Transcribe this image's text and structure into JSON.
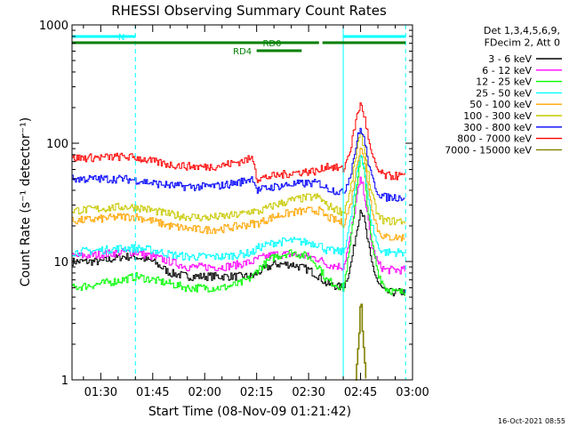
{
  "chart_data": {
    "type": "line",
    "title": "RHESSI Observing Summary Count Rates",
    "xlabel": "Start Time (08-Nov-09 01:21:42)",
    "ylabel": "Count Rate (s⁻¹ detector⁻¹)",
    "x_scale": "time",
    "y_scale": "log",
    "xlim": [
      "01:21:42",
      "03:00"
    ],
    "ylim": [
      1,
      1000
    ],
    "x_ticks": [
      "01:30",
      "01:45",
      "02:00",
      "02:15",
      "02:30",
      "02:45",
      "03:00"
    ],
    "y_ticks": [
      "1",
      "10",
      "100",
      "1000"
    ],
    "legend_position": "top-right",
    "legend_header": [
      "Det 1,3,4,5,6,9,",
      "FDecim 2, Att 0"
    ],
    "footer_timestamp": "16-Oct-2021 08:55",
    "annotations": {
      "night": {
        "label": "N",
        "color": "#00ffff",
        "intervals": [
          [
            "01:21:42",
            "01:40"
          ],
          [
            "02:40",
            "02:58"
          ]
        ]
      },
      "rd0": {
        "label": "RD0",
        "color": "#008000",
        "intervals": [
          [
            "01:21:42",
            "02:33"
          ],
          [
            "02:34",
            "02:58"
          ]
        ]
      },
      "rd4": {
        "label": "RD4",
        "color": "#008000",
        "intervals": [
          [
            "02:15",
            "02:28"
          ]
        ]
      },
      "vertical_lines": [
        {
          "t": "01:40",
          "style": "dashed",
          "color": "#00ffff"
        },
        {
          "t": "02:40",
          "style": "solid",
          "color": "#00ffff"
        },
        {
          "t": "02:58",
          "style": "dashed",
          "color": "#00ffff"
        }
      ]
    },
    "series": [
      {
        "name": "3 - 6 keV",
        "color": "#000000",
        "x": [
          "01:21:42",
          "01:30",
          "01:36",
          "01:40",
          "01:45",
          "01:50",
          "01:55",
          "02:00",
          "02:05",
          "02:10",
          "02:14",
          "02:15",
          "02:20",
          "02:25",
          "02:30",
          "02:33",
          "02:35",
          "02:40",
          "02:42",
          "02:44",
          "02:45",
          "02:46",
          "02:48",
          "02:50",
          "02:52",
          "02:55",
          "02:58"
        ],
        "values": [
          10,
          10,
          11,
          11,
          10,
          8,
          7.5,
          7.5,
          7.5,
          7.5,
          7.5,
          8,
          9.5,
          9.5,
          8.5,
          7.5,
          6.5,
          6,
          9,
          20,
          29,
          22,
          10,
          6.5,
          5.5,
          5.5,
          5.5
        ]
      },
      {
        "name": "6 - 12 keV",
        "color": "#ff00ff",
        "x": [
          "01:21:42",
          "01:30",
          "01:36",
          "01:40",
          "01:45",
          "01:50",
          "01:55",
          "02:00",
          "02:05",
          "02:10",
          "02:14",
          "02:15",
          "02:20",
          "02:25",
          "02:30",
          "02:33",
          "02:35",
          "02:40",
          "02:42",
          "02:44",
          "02:45",
          "02:46",
          "02:48",
          "02:50",
          "02:52",
          "02:55",
          "02:58"
        ],
        "values": [
          11,
          11.5,
          12,
          12,
          11,
          10,
          9,
          9,
          9,
          9.5,
          10,
          10.5,
          11.5,
          11.5,
          11,
          10.5,
          9.5,
          9,
          16,
          38,
          50,
          38,
          14,
          9.5,
          8.5,
          8.5,
          8.5
        ]
      },
      {
        "name": "12 - 25 keV",
        "color": "#00ff00",
        "x": [
          "01:21:42",
          "01:30",
          "01:36",
          "01:40",
          "01:45",
          "01:50",
          "01:55",
          "02:00",
          "02:05",
          "02:10",
          "02:14",
          "02:15",
          "02:20",
          "02:25",
          "02:30",
          "02:33",
          "02:35",
          "02:40",
          "02:42",
          "02:44",
          "02:45",
          "02:46",
          "02:48",
          "02:50",
          "02:52",
          "02:55",
          "02:58"
        ],
        "values": [
          6,
          6.5,
          7,
          7.5,
          7,
          6.5,
          6,
          6,
          6,
          6.5,
          7.5,
          8.5,
          11,
          12,
          11,
          9,
          7,
          6,
          14,
          50,
          80,
          55,
          15,
          8,
          6,
          5.5,
          5.5
        ]
      },
      {
        "name": "25 - 50 keV",
        "color": "#00ffff",
        "x": [
          "01:21:42",
          "01:30",
          "01:36",
          "01:40",
          "01:45",
          "01:50",
          "01:55",
          "02:00",
          "02:05",
          "02:10",
          "02:14",
          "02:15",
          "02:20",
          "02:25",
          "02:30",
          "02:33",
          "02:35",
          "02:40",
          "02:42",
          "02:44",
          "02:45",
          "02:46",
          "02:48",
          "02:50",
          "02:52",
          "02:55",
          "02:58"
        ],
        "values": [
          12,
          12.5,
          13,
          13,
          12.5,
          11.5,
          11,
          11,
          11,
          11.5,
          12,
          13,
          14.5,
          15,
          14.5,
          14,
          12.5,
          12,
          22,
          60,
          85,
          60,
          22,
          13,
          12,
          12,
          12
        ]
      },
      {
        "name": "50 - 100 keV",
        "color": "#ffa500",
        "x": [
          "01:21:42",
          "01:30",
          "01:36",
          "01:40",
          "01:45",
          "01:50",
          "01:55",
          "02:00",
          "02:05",
          "02:10",
          "02:14",
          "02:15",
          "02:20",
          "02:25",
          "02:30",
          "02:33",
          "02:35",
          "02:40",
          "02:42",
          "02:44",
          "02:45",
          "02:46",
          "02:48",
          "02:50",
          "02:52",
          "02:55",
          "02:58"
        ],
        "values": [
          22,
          23,
          24,
          24,
          22,
          20,
          19,
          18.5,
          19,
          20,
          21,
          21,
          24,
          26,
          27,
          27,
          24,
          21,
          30,
          70,
          100,
          70,
          30,
          18,
          16,
          16,
          16
        ]
      },
      {
        "name": "100 - 300 keV",
        "color": "#c8c800",
        "x": [
          "01:21:42",
          "01:30",
          "01:36",
          "01:40",
          "01:45",
          "01:50",
          "01:55",
          "02:00",
          "02:05",
          "02:10",
          "02:14",
          "02:15",
          "02:20",
          "02:25",
          "02:30",
          "02:33",
          "02:35",
          "02:40",
          "02:42",
          "02:44",
          "02:45",
          "02:46",
          "02:48",
          "02:50",
          "02:52",
          "02:55",
          "02:58"
        ],
        "values": [
          27,
          28,
          29,
          29,
          27,
          25,
          24,
          23.5,
          24,
          25,
          27,
          26,
          30,
          33,
          35,
          35,
          30,
          26,
          40,
          95,
          120,
          90,
          38,
          24,
          22,
          22,
          22
        ]
      },
      {
        "name": "300 - 800 keV",
        "color": "#0000ff",
        "x": [
          "01:21:42",
          "01:30",
          "01:36",
          "01:40",
          "01:45",
          "01:50",
          "01:55",
          "02:00",
          "02:05",
          "02:10",
          "02:14",
          "02:15",
          "02:20",
          "02:25",
          "02:30",
          "02:33",
          "02:35",
          "02:40",
          "02:42",
          "02:44",
          "02:45",
          "02:46",
          "02:48",
          "02:50",
          "02:52",
          "02:55",
          "02:58"
        ],
        "values": [
          50,
          50,
          50,
          49,
          46,
          44,
          43,
          43,
          44,
          47,
          51,
          40,
          43,
          45,
          46,
          46,
          42,
          38,
          55,
          110,
          135,
          105,
          52,
          38,
          35,
          35,
          35
        ]
      },
      {
        "name": "800 - 7000 keV",
        "color": "#ff0000",
        "x": [
          "01:21:42",
          "01:30",
          "01:36",
          "01:40",
          "01:45",
          "01:50",
          "01:55",
          "02:00",
          "02:05",
          "02:10",
          "02:14",
          "02:15",
          "02:20",
          "02:25",
          "02:30",
          "02:33",
          "02:35",
          "02:40",
          "02:42",
          "02:44",
          "02:45",
          "02:46",
          "02:48",
          "02:50",
          "02:52",
          "02:55",
          "02:58"
        ],
        "values": [
          75,
          76,
          77,
          76,
          70,
          66,
          64,
          63,
          65,
          70,
          75,
          50,
          53,
          56,
          58,
          58,
          65,
          60,
          90,
          180,
          215,
          170,
          80,
          58,
          53,
          53,
          53
        ]
      },
      {
        "name": "7000 - 15000 keV",
        "color": "#808000",
        "x": [
          "02:43:30",
          "02:44:30",
          "02:45",
          "02:45:30",
          "02:46:30"
        ],
        "values": [
          1,
          2.5,
          5.5,
          2.5,
          1
        ]
      }
    ]
  }
}
